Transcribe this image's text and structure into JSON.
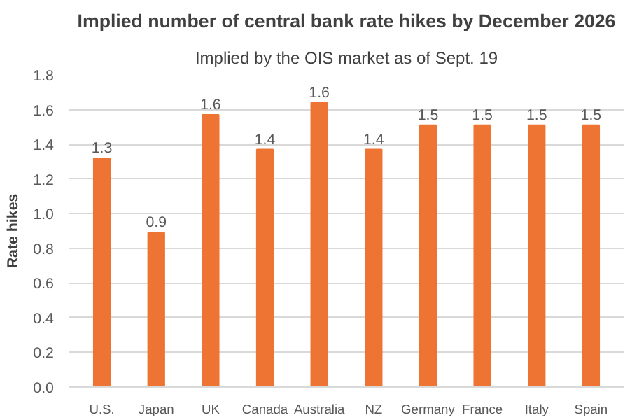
{
  "chart_data": {
    "type": "bar",
    "title": "Implied number of central bank rate hikes by December 2026",
    "subtitle": "Implied by the OIS market as of Sept. 19",
    "ylabel": "Rate hikes",
    "categories": [
      "U.S.",
      "Japan",
      "UK",
      "Canada",
      "Australia",
      "NZ",
      "Germany",
      "France",
      "Italy",
      "Spain"
    ],
    "values": [
      1.32,
      0.89,
      1.57,
      1.37,
      1.64,
      1.37,
      1.51,
      1.51,
      1.51,
      1.51
    ],
    "value_labels": [
      "1.3",
      "0.9",
      "1.6",
      "1.4",
      "1.6",
      "1.4",
      "1.5",
      "1.5",
      "1.5",
      "1.5"
    ],
    "color": "#ed7432",
    "ylim": [
      0,
      1.8
    ],
    "yticks": [
      {
        "value": 0,
        "label": "0.0"
      },
      {
        "value": 0.2,
        "label": "0.2"
      },
      {
        "value": 0.4,
        "label": "0.4"
      },
      {
        "value": 0.6,
        "label": "0.6"
      },
      {
        "value": 0.8,
        "label": "0.8"
      },
      {
        "value": 1.0,
        "label": "1.0"
      },
      {
        "value": 1.2,
        "label": "1.2"
      },
      {
        "value": 1.4,
        "label": "1.4"
      },
      {
        "value": 1.6,
        "label": "1.6"
      },
      {
        "value": 1.8,
        "label": "1.8"
      }
    ],
    "grid": "y"
  }
}
